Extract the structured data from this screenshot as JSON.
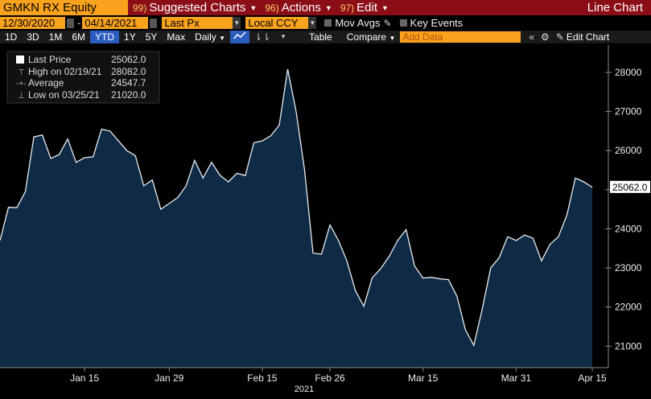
{
  "topbar": {
    "ticker": "GMKN RX Equity",
    "menu": [
      {
        "num": "99)",
        "label": "Suggested Charts"
      },
      {
        "num": "96)",
        "label": "Actions"
      },
      {
        "num": "97)",
        "label": "Edit"
      }
    ],
    "title": "Line Chart"
  },
  "controls": {
    "start_date": "12/30/2020",
    "end_date": "04/14/2021",
    "field": "Last Px",
    "currency": "Local CCY",
    "mov_avgs": "Mov Avgs",
    "key_events": "Key Events"
  },
  "toolbar": {
    "periods": [
      "1D",
      "3D",
      "1M",
      "6M",
      "YTD",
      "1Y",
      "5Y",
      "Max"
    ],
    "active_period": "YTD",
    "frequency": "Daily",
    "table": "Table",
    "compare": "Compare",
    "add_data": "Add Data",
    "edit_chart": "Edit Chart"
  },
  "legend": {
    "last_price_label": "Last Price",
    "last_price_value": "25062.0",
    "high_label": "High on 02/19/21",
    "high_value": "28082.0",
    "average_label": "Average",
    "average_value": "24547.7",
    "low_label": "Low on 03/25/21",
    "low_value": "21020.0"
  },
  "colors": {
    "fill": "#0f2a45",
    "line": "#e8edf2",
    "brand_red": "#8b0d16",
    "orange": "#f8a21e"
  },
  "chart_data": {
    "type": "area",
    "xlabel": "2021",
    "x_ticks": [
      "Jan 15",
      "Jan 29",
      "Feb 15",
      "Feb 26",
      "Mar 15",
      "Mar 31",
      "Apr 15"
    ],
    "y_ticks": [
      21000,
      22000,
      23000,
      24000,
      25000,
      26000,
      27000,
      28000
    ],
    "ylim": [
      20450,
      28700
    ],
    "last_value_label": "25062.0",
    "series": [
      {
        "values": [
          23700,
          24550,
          24540,
          24950,
          26350,
          26400,
          25800,
          25900,
          26300,
          25700,
          25820,
          25840,
          26550,
          26500,
          26250,
          26000,
          25870,
          25100,
          25250,
          24500,
          24650,
          24800,
          25100,
          25750,
          25300,
          25700,
          25370,
          25200,
          25420,
          25360,
          26200,
          26250,
          26380,
          26650,
          28082,
          27000,
          25500,
          23380,
          23350,
          24100,
          23700,
          23180,
          22420,
          22020,
          22750,
          22980,
          23300,
          23700,
          23980,
          23050,
          22740,
          22760,
          22720,
          22700,
          22280,
          21420,
          21020,
          21950,
          23000,
          23260,
          23800,
          23700,
          23840,
          23760,
          23180,
          23600,
          23800,
          24350,
          25300,
          25200,
          25062
        ]
      }
    ]
  }
}
